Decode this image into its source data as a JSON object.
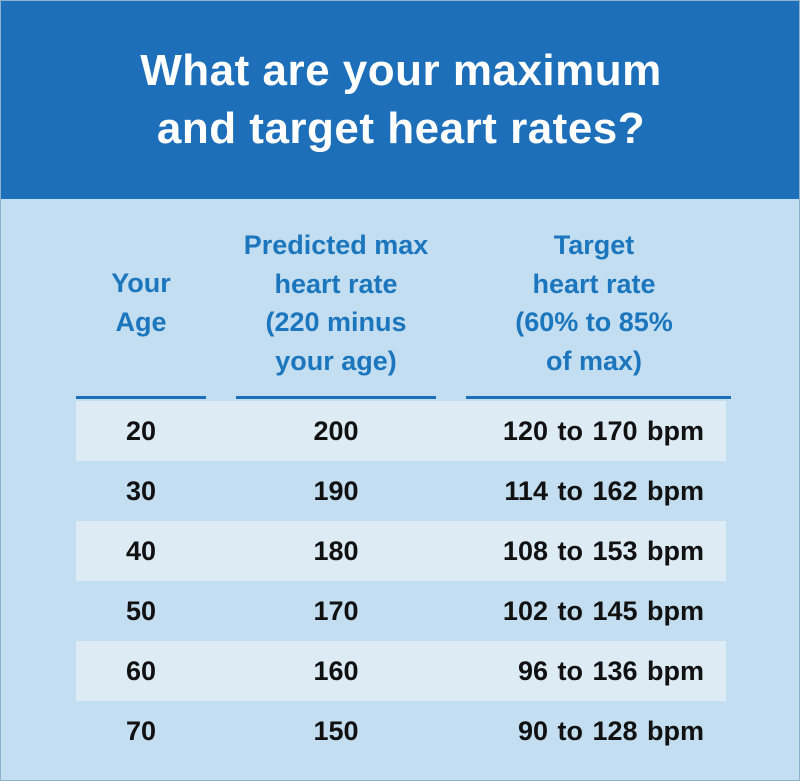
{
  "title": {
    "lines": [
      "What are your maximum",
      "and target heart rates?"
    ]
  },
  "columns": [
    {
      "lines": [
        "Your",
        "Age"
      ]
    },
    {
      "lines": [
        "Predicted max",
        "heart rate",
        "(220 minus",
        "your age)"
      ]
    },
    {
      "lines": [
        "Target",
        "heart rate",
        "(60% to 85%",
        "of max)"
      ]
    }
  ],
  "rows": [
    {
      "age": "20",
      "max": "200",
      "target": "120 to 170 bpm"
    },
    {
      "age": "30",
      "max": "190",
      "target": "114 to 162 bpm"
    },
    {
      "age": "40",
      "max": "180",
      "target": "108 to 153 bpm"
    },
    {
      "age": "50",
      "max": "170",
      "target": "102 to 145 bpm"
    },
    {
      "age": "60",
      "max": "160",
      "target": "96 to 136 bpm"
    },
    {
      "age": "70",
      "max": "150",
      "target": "90 to 128 bpm"
    }
  ],
  "colors": {
    "header_bg": "#1c6fb8",
    "body_bg": "#c3def0",
    "stripe_bg": "#ddebf5",
    "column_heading": "#1c76bd"
  }
}
